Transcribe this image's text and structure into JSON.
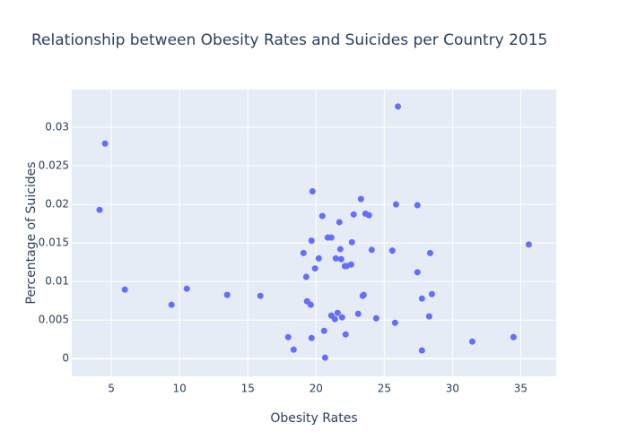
{
  "chart_data": {
    "type": "scatter",
    "title": "Relationship between Obesity Rates and Suicides per Country 2015",
    "x_label": "Obesity Rates",
    "y_label": "Percentage of Suicides",
    "color": "#636efa",
    "grid": true,
    "xlim": [
      2.1,
      37.6
    ],
    "ylim": [
      -0.0023,
      0.0349
    ],
    "xticks": [
      5,
      10,
      15,
      20,
      25,
      30,
      35
    ],
    "yticks": [
      0,
      0.005,
      0.01,
      0.015,
      0.02,
      0.025,
      0.03
    ],
    "x": [
      26.0,
      4.54,
      4.14,
      5.99,
      9.41,
      10.53,
      13.49,
      15.92,
      19.74,
      23.29,
      25.86,
      27.43,
      20.46,
      21.71,
      22.76,
      23.62,
      23.88,
      19.67,
      20.86,
      21.12,
      22.63,
      35.59,
      21.78,
      24.08,
      25.59,
      19.08,
      28.36,
      20.2,
      21.45,
      21.84,
      22.11,
      22.24,
      22.57,
      19.93,
      27.43,
      19.28,
      19.34,
      19.61,
      23.49,
      23.42,
      27.76,
      28.49,
      23.09,
      21.12,
      21.58,
      21.91,
      21.38,
      24.41,
      25.79,
      28.29,
      20.59,
      22.17,
      17.96,
      19.67,
      34.47,
      31.45,
      18.36,
      27.76,
      20.66
    ],
    "y": [
      0.0327,
      0.0279,
      0.0193,
      0.00895,
      0.00698,
      0.00907,
      0.00826,
      0.00814,
      0.0217,
      0.0207,
      0.02,
      0.0199,
      0.0185,
      0.0177,
      0.0187,
      0.0188,
      0.0186,
      0.0153,
      0.0157,
      0.0157,
      0.0151,
      0.0148,
      0.0142,
      0.0141,
      0.014,
      0.0137,
      0.0137,
      0.013,
      0.013,
      0.0129,
      0.012,
      0.012,
      0.0122,
      0.0117,
      0.0112,
      0.0106,
      0.00744,
      0.00698,
      0.00826,
      0.00814,
      0.00779,
      0.00837,
      0.00581,
      0.00558,
      0.00593,
      0.00535,
      0.00512,
      0.00523,
      0.00465,
      0.00547,
      0.0036,
      0.00314,
      0.00279,
      0.00267,
      0.00279,
      0.00221,
      0.00116,
      0.00105,
      0.00012
    ]
  }
}
